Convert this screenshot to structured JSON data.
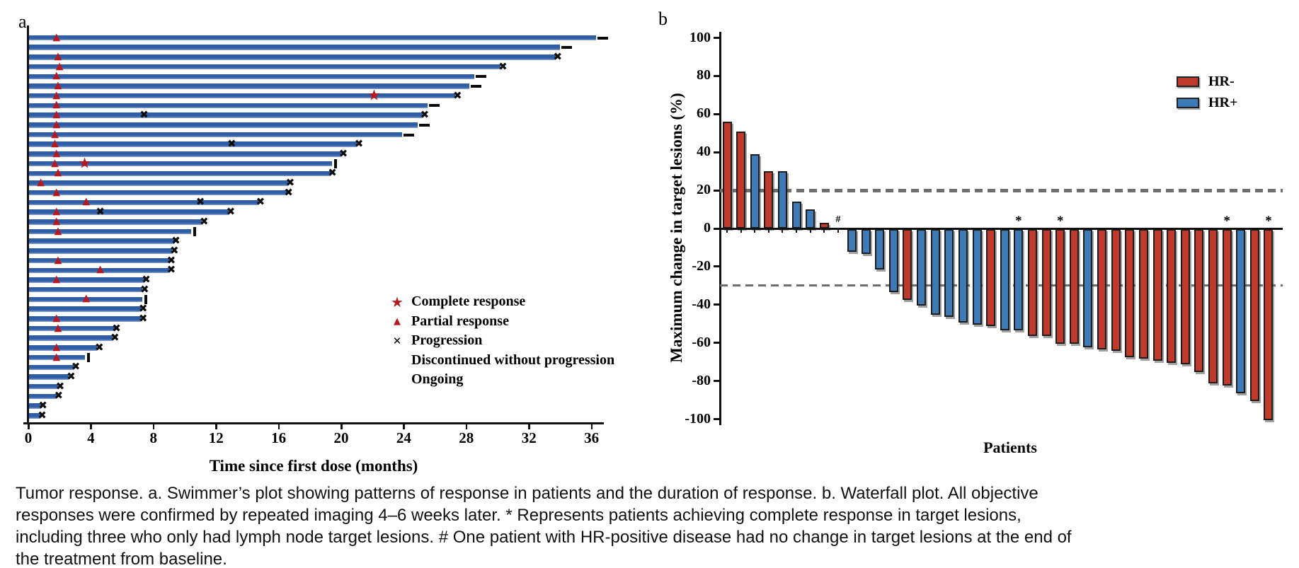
{
  "figure": {
    "panel_a_label": "a",
    "panel_b_label": "b",
    "caption": "Tumor response. a. Swimmer’s plot showing patterns of response in patients and the duration of response. b. Waterfall plot. All objective responses were confirmed by repeated imaging 4–6 weeks later. * Represents patients achieving complete response in target lesions, including three who only had lymph node target lesions. # One patient with HR-positive disease had no change in target lesions at the end of the treatment from baseline."
  },
  "chart_data": [
    {
      "type": "bar",
      "subtype": "swimmer",
      "panel": "a",
      "xlabel": "Time since first dose (months)",
      "x_ticks": [
        0,
        4,
        8,
        12,
        16,
        20,
        24,
        28,
        32,
        36
      ],
      "xlim": [
        0,
        37
      ],
      "x_unit": "months",
      "grid": false,
      "legend_position": "right-middle",
      "legend": [
        {
          "marker": "star",
          "label": "Complete response"
        },
        {
          "marker": "triangle",
          "label": "Partial response"
        },
        {
          "marker": "x",
          "label": "Progression"
        },
        {
          "marker": "bar",
          "label": "Discontinued without progression"
        },
        {
          "marker": "dash",
          "label": "Ongoing"
        }
      ],
      "colors": {
        "bar": "#2e5ca5",
        "response_marker": "#b5191f",
        "event_marker": "#0a0a0a"
      },
      "bars": [
        {
          "end": 36.3,
          "end_marker": "ongoing",
          "events": [
            {
              "type": "partial_response",
              "month": 1.8
            }
          ]
        },
        {
          "end": 34.0,
          "end_marker": "ongoing",
          "events": []
        },
        {
          "end": 33.7,
          "end_marker": "progression",
          "events": [
            {
              "type": "partial_response",
              "month": 1.9
            }
          ]
        },
        {
          "end": 30.2,
          "end_marker": "progression",
          "events": [
            {
              "type": "partial_response",
              "month": 2.0
            }
          ]
        },
        {
          "end": 28.5,
          "end_marker": "ongoing",
          "events": [
            {
              "type": "partial_response",
              "month": 1.8
            }
          ]
        },
        {
          "end": 28.2,
          "end_marker": "ongoing",
          "events": [
            {
              "type": "partial_response",
              "month": 1.9
            }
          ]
        },
        {
          "end": 27.3,
          "end_marker": "progression",
          "events": [
            {
              "type": "partial_response",
              "month": 1.8
            },
            {
              "type": "complete_response",
              "month": 22.1
            }
          ]
        },
        {
          "end": 25.5,
          "end_marker": "ongoing",
          "events": [
            {
              "type": "partial_response",
              "month": 1.8
            }
          ]
        },
        {
          "end": 25.2,
          "end_marker": "progression",
          "events": [
            {
              "type": "partial_response",
              "month": 1.8
            },
            {
              "type": "progression",
              "month": 7.4
            }
          ]
        },
        {
          "end": 24.9,
          "end_marker": "ongoing",
          "events": [
            {
              "type": "partial_response",
              "month": 1.8
            }
          ]
        },
        {
          "end": 23.9,
          "end_marker": "ongoing",
          "events": [
            {
              "type": "partial_response",
              "month": 1.7
            }
          ]
        },
        {
          "end": 21.0,
          "end_marker": "progression",
          "events": [
            {
              "type": "partial_response",
              "month": 1.7
            },
            {
              "type": "progression",
              "month": 13.0
            }
          ]
        },
        {
          "end": 20.0,
          "end_marker": "progression",
          "events": [
            {
              "type": "partial_response",
              "month": 1.8
            }
          ]
        },
        {
          "end": 19.4,
          "end_marker": "discontinued",
          "events": [
            {
              "type": "partial_response",
              "month": 1.7
            },
            {
              "type": "complete_response",
              "month": 3.6
            }
          ]
        },
        {
          "end": 19.3,
          "end_marker": "progression",
          "events": [
            {
              "type": "partial_response",
              "month": 1.9
            }
          ]
        },
        {
          "end": 16.6,
          "end_marker": "progression",
          "events": [
            {
              "type": "partial_response",
              "month": 0.8
            }
          ]
        },
        {
          "end": 16.5,
          "end_marker": "progression",
          "events": [
            {
              "type": "partial_response",
              "month": 1.8
            }
          ]
        },
        {
          "end": 14.7,
          "end_marker": "progression",
          "events": [
            {
              "type": "partial_response",
              "month": 3.7
            },
            {
              "type": "progression",
              "month": 11.0
            }
          ]
        },
        {
          "end": 12.8,
          "end_marker": "progression",
          "events": [
            {
              "type": "partial_response",
              "month": 1.8
            },
            {
              "type": "progression",
              "month": 4.6
            }
          ]
        },
        {
          "end": 11.1,
          "end_marker": "progression",
          "events": [
            {
              "type": "partial_response",
              "month": 1.8
            }
          ]
        },
        {
          "end": 10.4,
          "end_marker": "discontinued",
          "events": [
            {
              "type": "partial_response",
              "month": 1.9
            }
          ]
        },
        {
          "end": 9.3,
          "end_marker": "progression",
          "events": []
        },
        {
          "end": 9.2,
          "end_marker": "progression",
          "events": []
        },
        {
          "end": 9.0,
          "end_marker": "progression",
          "events": [
            {
              "type": "partial_response",
              "month": 1.9
            }
          ]
        },
        {
          "end": 9.0,
          "end_marker": "progression",
          "events": [
            {
              "type": "partial_response",
              "month": 4.6
            }
          ]
        },
        {
          "end": 7.4,
          "end_marker": "progression",
          "events": [
            {
              "type": "partial_response",
              "month": 1.8
            }
          ]
        },
        {
          "end": 7.3,
          "end_marker": "progression",
          "events": []
        },
        {
          "end": 7.3,
          "end_marker": "discontinued",
          "events": [
            {
              "type": "partial_response",
              "month": 3.7
            }
          ]
        },
        {
          "end": 7.2,
          "end_marker": "progression",
          "events": []
        },
        {
          "end": 7.2,
          "end_marker": "progression",
          "events": [
            {
              "type": "partial_response",
              "month": 1.8
            }
          ]
        },
        {
          "end": 5.5,
          "end_marker": "progression",
          "events": [
            {
              "type": "partial_response",
              "month": 1.9
            }
          ]
        },
        {
          "end": 5.4,
          "end_marker": "progression",
          "events": []
        },
        {
          "end": 4.4,
          "end_marker": "progression",
          "events": [
            {
              "type": "partial_response",
              "month": 1.8
            }
          ]
        },
        {
          "end": 3.6,
          "end_marker": "discontinued",
          "events": [
            {
              "type": "partial_response",
              "month": 1.8
            }
          ]
        },
        {
          "end": 2.9,
          "end_marker": "progression",
          "events": []
        },
        {
          "end": 2.6,
          "end_marker": "progression",
          "events": []
        },
        {
          "end": 1.9,
          "end_marker": "progression",
          "events": []
        },
        {
          "end": 1.8,
          "end_marker": "progression",
          "events": []
        },
        {
          "end": 0.8,
          "end_marker": "progression",
          "events": []
        },
        {
          "end": 0.75,
          "end_marker": "progression",
          "events": []
        }
      ]
    },
    {
      "type": "bar",
      "subtype": "waterfall",
      "panel": "b",
      "ylabel": "Maximum change in target lesions (%)",
      "xlabel": "Patients",
      "y_ticks": [
        100,
        80,
        60,
        40,
        20,
        0,
        -20,
        -40,
        -60,
        -80,
        -100
      ],
      "ylim": [
        -100,
        100
      ],
      "reference_lines": [
        20,
        -30
      ],
      "grid": false,
      "legend_position": "top-right",
      "legend": [
        {
          "label": "HR-",
          "color": "#c03a2b"
        },
        {
          "label": "HR+",
          "color": "#3d7ab6"
        }
      ],
      "group_colors": {
        "HR-": "#c03a2b",
        "HR+": "#3d7ab6"
      },
      "bars": [
        {
          "value": 56,
          "group": "HR-"
        },
        {
          "value": 51,
          "group": "HR-"
        },
        {
          "value": 39,
          "group": "HR+"
        },
        {
          "value": 30,
          "group": "HR-"
        },
        {
          "value": 30,
          "group": "HR+"
        },
        {
          "value": 14,
          "group": "HR+"
        },
        {
          "value": 10,
          "group": "HR+"
        },
        {
          "value": 3,
          "group": "HR-"
        },
        {
          "value": 0,
          "group": "HR+",
          "flag": "#"
        },
        {
          "value": -12,
          "group": "HR+"
        },
        {
          "value": -13,
          "group": "HR+"
        },
        {
          "value": -21,
          "group": "HR+"
        },
        {
          "value": -33,
          "group": "HR+"
        },
        {
          "value": -37,
          "group": "HR-"
        },
        {
          "value": -40,
          "group": "HR+"
        },
        {
          "value": -45,
          "group": "HR+"
        },
        {
          "value": -46,
          "group": "HR+"
        },
        {
          "value": -49,
          "group": "HR+"
        },
        {
          "value": -50,
          "group": "HR+"
        },
        {
          "value": -51,
          "group": "HR-"
        },
        {
          "value": -53,
          "group": "HR+"
        },
        {
          "value": -53,
          "group": "HR+",
          "flag": "*"
        },
        {
          "value": -56,
          "group": "HR-"
        },
        {
          "value": -56,
          "group": "HR-"
        },
        {
          "value": -60,
          "group": "HR-",
          "flag": "*"
        },
        {
          "value": -60,
          "group": "HR-"
        },
        {
          "value": -62,
          "group": "HR+"
        },
        {
          "value": -63,
          "group": "HR-"
        },
        {
          "value": -64,
          "group": "HR-"
        },
        {
          "value": -67,
          "group": "HR-"
        },
        {
          "value": -68,
          "group": "HR-"
        },
        {
          "value": -69,
          "group": "HR-"
        },
        {
          "value": -70,
          "group": "HR-"
        },
        {
          "value": -71,
          "group": "HR-"
        },
        {
          "value": -75,
          "group": "HR-"
        },
        {
          "value": -81,
          "group": "HR-"
        },
        {
          "value": -82,
          "group": "HR-",
          "flag": "*"
        },
        {
          "value": -86,
          "group": "HR+"
        },
        {
          "value": -90,
          "group": "HR-"
        },
        {
          "value": -100,
          "group": "HR-",
          "flag": "*"
        }
      ]
    }
  ]
}
